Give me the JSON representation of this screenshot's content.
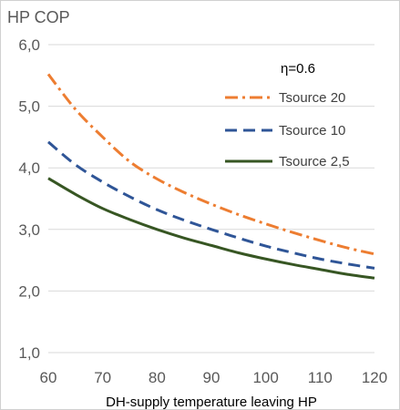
{
  "chart_data": {
    "type": "line",
    "title": "HP COP",
    "xlabel": "DH-supply temperature leaving HP",
    "ylabel": "",
    "annotation": "η=0.6",
    "xlim": [
      60,
      120
    ],
    "ylim": [
      1.0,
      6.0
    ],
    "x_ticks": [
      "60",
      "70",
      "80",
      "90",
      "100",
      "110",
      "120"
    ],
    "y_ticks": [
      "1,0",
      "2,0",
      "3,0",
      "4,0",
      "5,0",
      "6,0"
    ],
    "x_tick_values": [
      60,
      70,
      80,
      90,
      100,
      110,
      120
    ],
    "y_tick_values": [
      1,
      2,
      3,
      4,
      5,
      6
    ],
    "grid": "horizontal",
    "legend_position": "top-right",
    "x": [
      60,
      65,
      70,
      75,
      80,
      85,
      90,
      95,
      100,
      105,
      110,
      115,
      120
    ],
    "series": [
      {
        "name": "Tsource 20",
        "color": "#ED7D31",
        "dash": "dash-dot",
        "values": [
          5.52,
          4.95,
          4.5,
          4.1,
          3.82,
          3.6,
          3.41,
          3.24,
          3.09,
          2.95,
          2.82,
          2.7,
          2.6
        ]
      },
      {
        "name": "Tsource 10",
        "color": "#2F5597",
        "dash": "dash",
        "values": [
          4.42,
          4.05,
          3.77,
          3.53,
          3.32,
          3.15,
          3.0,
          2.86,
          2.73,
          2.62,
          2.52,
          2.44,
          2.37
        ]
      },
      {
        "name": "Tsource 2,5",
        "color": "#375623",
        "dash": "solid",
        "values": [
          3.83,
          3.57,
          3.34,
          3.16,
          3.0,
          2.86,
          2.74,
          2.62,
          2.52,
          2.43,
          2.35,
          2.27,
          2.21
        ]
      }
    ]
  }
}
